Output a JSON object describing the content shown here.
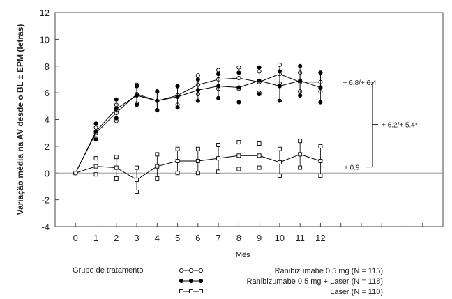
{
  "chart_data": {
    "type": "line",
    "xlabel": "Mês",
    "ylabel": "Variação média na AV desde o BL ± EPM (letras)",
    "ylim": [
      -4,
      12
    ],
    "xlim": [
      -1,
      18
    ],
    "x_ticks": [
      0,
      1,
      2,
      3,
      4,
      5,
      6,
      7,
      8,
      9,
      10,
      11,
      12
    ],
    "y_ticks": [
      -4,
      -2,
      0,
      2,
      4,
      6,
      8,
      10,
      12
    ],
    "reference_line_y": 0,
    "grid": false,
    "legend": {
      "title": "Grupo de tratamento",
      "position": "bottom"
    },
    "series": [
      {
        "name": "Ranibizumabe 0,5 mg (N = 115)",
        "marker": "open-circle",
        "color": "#000000",
        "x": [
          0,
          1,
          2,
          3,
          4,
          5,
          6,
          7,
          8,
          9,
          10,
          11,
          12
        ],
        "values": [
          0,
          3.0,
          4.5,
          5.9,
          5.4,
          5.8,
          6.6,
          7.0,
          7.1,
          6.8,
          7.4,
          6.8,
          6.8
        ],
        "sem": [
          0,
          0.4,
          0.6,
          0.7,
          0.7,
          0.7,
          0.7,
          0.7,
          0.8,
          0.8,
          0.7,
          0.7,
          0.7
        ]
      },
      {
        "name": "Ranibizumabe 0,5 mg + Laser (N = 118)",
        "marker": "filled-circle",
        "color": "#000000",
        "x": [
          0,
          1,
          2,
          3,
          4,
          5,
          6,
          7,
          8,
          9,
          10,
          11,
          12
        ],
        "values": [
          0,
          3.1,
          4.8,
          5.8,
          5.4,
          5.7,
          6.2,
          6.5,
          6.4,
          6.9,
          6.5,
          6.9,
          6.4
        ],
        "sem": [
          0,
          0.6,
          0.7,
          0.7,
          0.7,
          0.8,
          0.8,
          0.9,
          1.1,
          1.0,
          1.1,
          1.1,
          1.1
        ]
      },
      {
        "name": "Laser (N = 110)",
        "marker": "open-square",
        "color": "#000000",
        "x": [
          0,
          1,
          2,
          3,
          4,
          5,
          6,
          7,
          8,
          9,
          10,
          11,
          12
        ],
        "values": [
          0,
          0.5,
          0.4,
          -0.5,
          0.5,
          0.9,
          0.9,
          1.1,
          1.3,
          1.3,
          0.8,
          1.4,
          0.9
        ],
        "sem": [
          0,
          0.6,
          0.8,
          0.9,
          0.9,
          0.9,
          0.9,
          1.0,
          1.0,
          0.9,
          1.0,
          1.0,
          1.1
        ]
      }
    ],
    "annotations": [
      {
        "text": "+ 6.8/+ 6.4",
        "target_series": "upper"
      },
      {
        "text": "+ 0.9",
        "target_series": "laser"
      },
      {
        "text": "+ 6.2/+ 5.4*",
        "target_series": "difference"
      }
    ]
  }
}
